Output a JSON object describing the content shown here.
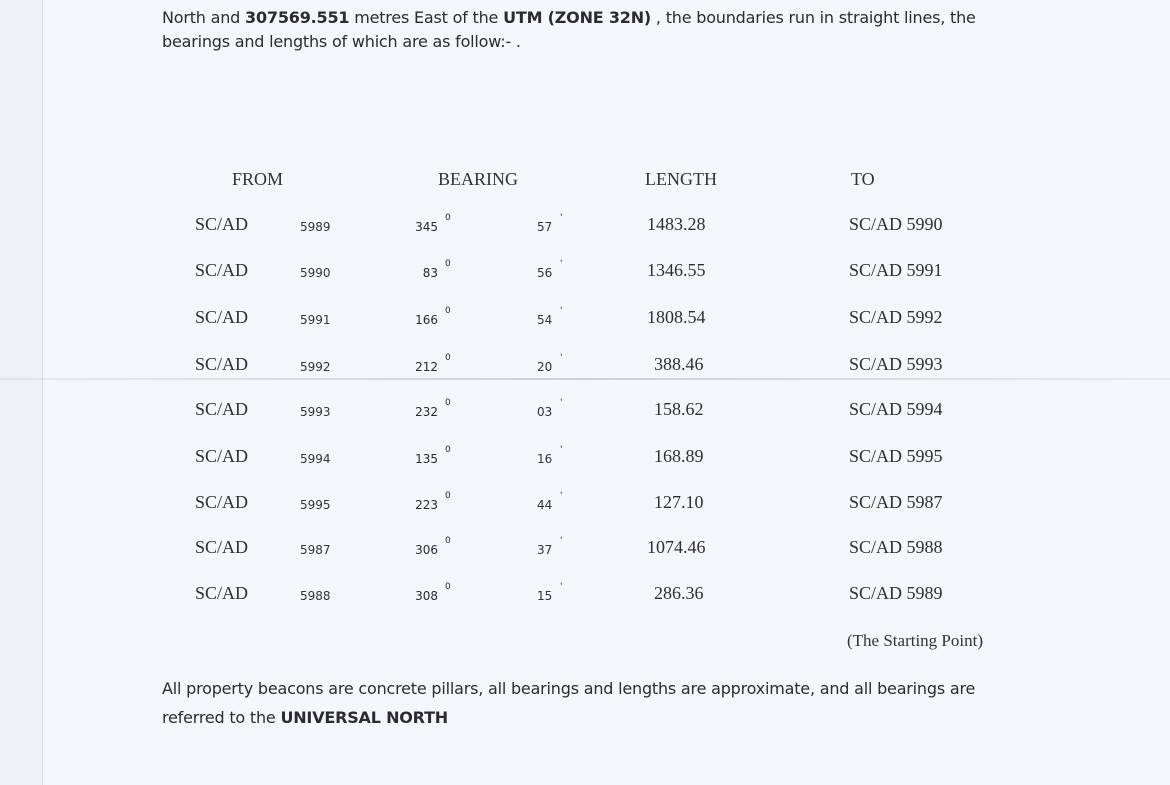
{
  "intro": {
    "line1_a": "North and ",
    "line1_b": "307569.551",
    "line1_c": " metres East of the ",
    "line1_d": "UTM (ZONE 32N)",
    "line1_e": " , the boundaries run in straight lines, the",
    "line2": "bearings and lengths of which are as follow:- ."
  },
  "table": {
    "headers": {
      "from": "FROM",
      "bearing": "BEARING",
      "length": "LENGTH",
      "to": "TO"
    },
    "degree_symbol": "0",
    "minute_symbol": "'",
    "rows": [
      {
        "prefix": "SC/AD",
        "from": "5989",
        "deg": "345",
        "min": "57",
        "length": "1483.28",
        "to": "SC/AD 5990"
      },
      {
        "prefix": "SC/AD",
        "from": "5990",
        "deg": "83",
        "min": "56",
        "length": "1346.55",
        "to": "SC/AD 5991"
      },
      {
        "prefix": "SC/AD",
        "from": "5991",
        "deg": "166",
        "min": "54",
        "length": "1808.54",
        "to": "SC/AD 5992"
      },
      {
        "prefix": "SC/AD",
        "from": "5992",
        "deg": "212",
        "min": "20",
        "length": "388.46",
        "to": "SC/AD 5993"
      },
      {
        "prefix": "SC/AD",
        "from": "5993",
        "deg": "232",
        "min": "03",
        "length": "158.62",
        "to": "SC/AD 5994"
      },
      {
        "prefix": "SC/AD",
        "from": "5994",
        "deg": "135",
        "min": "16",
        "length": "168.89",
        "to": "SC/AD 5995"
      },
      {
        "prefix": "SC/AD",
        "from": "5995",
        "deg": "223",
        "min": "44",
        "length": "127.10",
        "to": "SC/AD 5987"
      },
      {
        "prefix": "SC/AD",
        "from": "5987",
        "deg": "306",
        "min": "37",
        "length": "1074.46",
        "to": "SC/AD 5988"
      },
      {
        "prefix": "SC/AD",
        "from": "5988",
        "deg": "308",
        "min": "15",
        "length": "286.36",
        "to": "SC/AD 5989"
      }
    ],
    "footnote": "(The Starting Point)"
  },
  "closing": {
    "line1": "All property beacons are concrete pillars, all bearings and lengths are approximate, and all bearings are",
    "line2_a": "referred to the ",
    "line2_b": "UNIVERSAL NORTH"
  }
}
